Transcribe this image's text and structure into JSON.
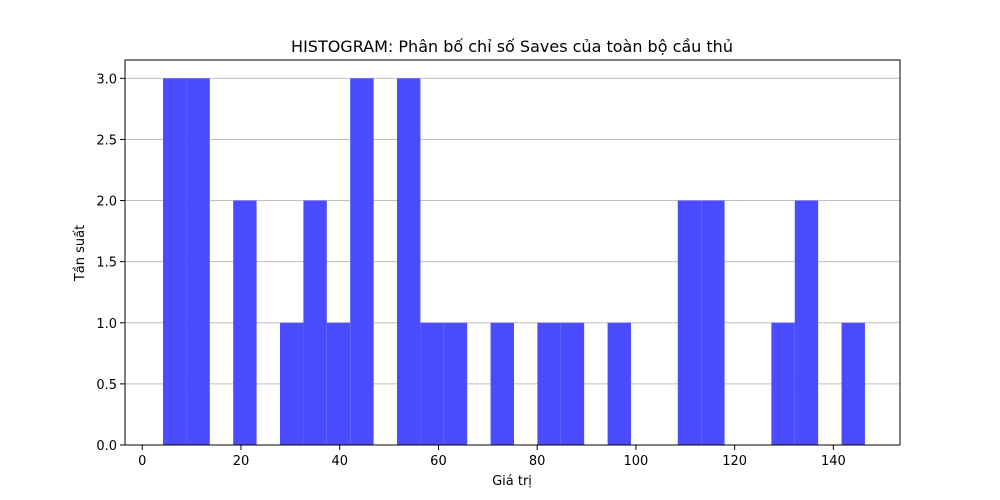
{
  "chart_data": {
    "type": "bar",
    "title": "HISTOGRAM: Phân bố chỉ số Saves của toàn bộ cầu thủ",
    "xlabel": "Giá trị",
    "ylabel": "Tần suất",
    "xlim": [
      -3.5,
      153.5
    ],
    "ylim": [
      0,
      3.15
    ],
    "x_ticks": [
      0,
      20,
      40,
      60,
      80,
      100,
      120,
      140
    ],
    "y_ticks": [
      0.0,
      0.5,
      1.0,
      1.5,
      2.0,
      2.5,
      3.0
    ],
    "x_tick_labels": [
      "0",
      "20",
      "40",
      "60",
      "80",
      "100",
      "120",
      "140"
    ],
    "y_tick_labels": [
      "0.0",
      "0.5",
      "1.0",
      "1.5",
      "2.0",
      "2.5",
      "3.0"
    ],
    "bin_width": 4.74,
    "bins": [
      {
        "start": 4.2,
        "end": 8.94,
        "value": 3
      },
      {
        "start": 8.94,
        "end": 13.68,
        "value": 3
      },
      {
        "start": 18.42,
        "end": 23.16,
        "value": 2
      },
      {
        "start": 27.9,
        "end": 32.64,
        "value": 1
      },
      {
        "start": 32.64,
        "end": 37.38,
        "value": 2
      },
      {
        "start": 37.38,
        "end": 42.12,
        "value": 1
      },
      {
        "start": 42.12,
        "end": 46.86,
        "value": 3
      },
      {
        "start": 51.6,
        "end": 56.34,
        "value": 3
      },
      {
        "start": 56.34,
        "end": 61.08,
        "value": 1
      },
      {
        "start": 61.08,
        "end": 65.82,
        "value": 1
      },
      {
        "start": 70.56,
        "end": 75.3,
        "value": 1
      },
      {
        "start": 80.04,
        "end": 84.78,
        "value": 1
      },
      {
        "start": 84.78,
        "end": 89.52,
        "value": 1
      },
      {
        "start": 94.26,
        "end": 99.0,
        "value": 1
      },
      {
        "start": 108.48,
        "end": 113.22,
        "value": 2
      },
      {
        "start": 113.22,
        "end": 117.96,
        "value": 2
      },
      {
        "start": 127.44,
        "end": 132.18,
        "value": 1
      },
      {
        "start": 132.18,
        "end": 136.92,
        "value": 2
      },
      {
        "start": 141.66,
        "end": 146.4,
        "value": 1
      }
    ],
    "grid": "horizontal",
    "colors": {
      "bar": "#4b4bff",
      "grid": "#c0c0c0",
      "axis": "#000000"
    }
  }
}
